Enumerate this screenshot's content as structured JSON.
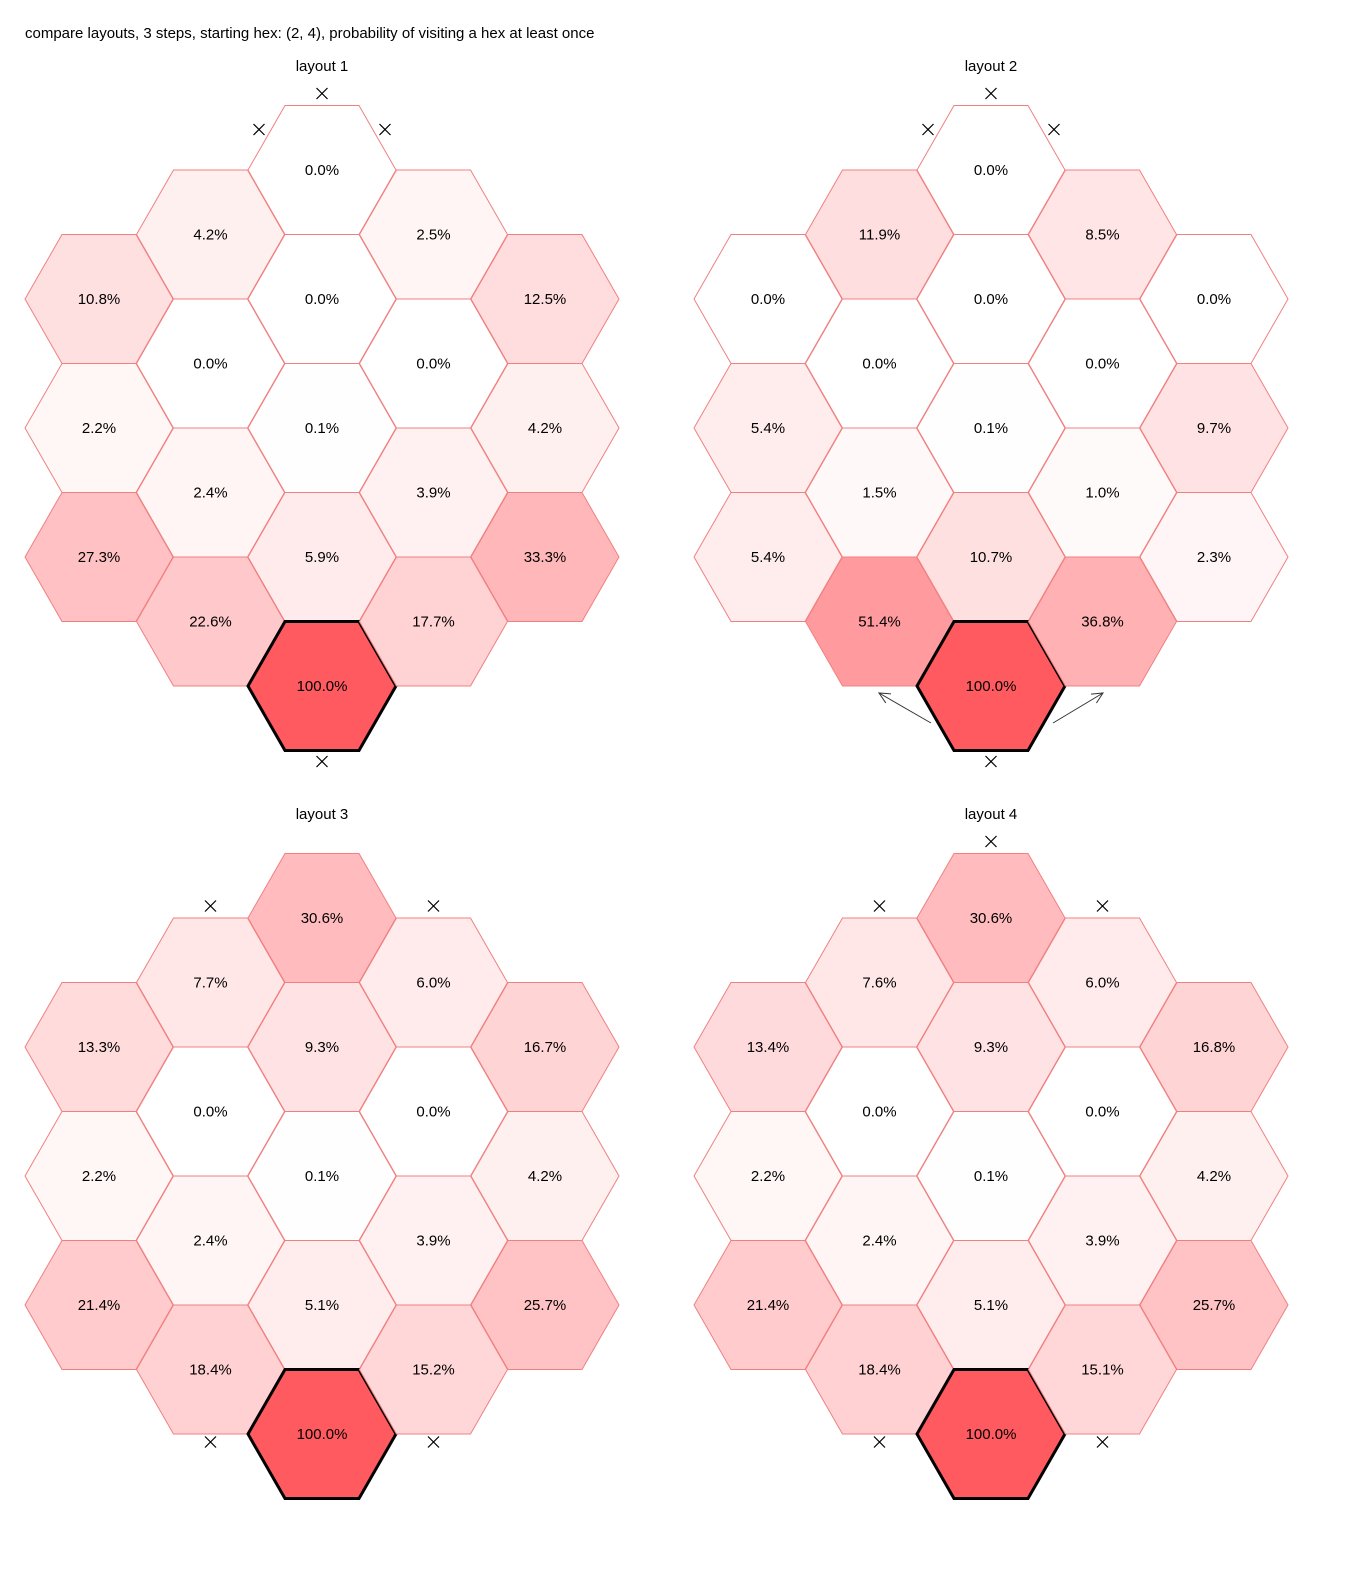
{
  "caption": "compare layouts, 3 steps, starting hex: (2, 4), probability of visiting a hex at least once",
  "colors": {
    "edge": "#f08080",
    "start_edge": "#000000",
    "fill_max": "#ff5a5f",
    "text": "#000000",
    "marker": "#000000"
  },
  "panels": [
    {
      "title": "layout 1",
      "start": "(2, 4)",
      "columns": [
        [
          "10.8%",
          "2.2%",
          "27.3%"
        ],
        [
          "4.2%",
          "0.0%",
          "2.4%",
          "22.6%"
        ],
        [
          "0.0%",
          "0.0%",
          "0.1%",
          "5.9%",
          "100.0%"
        ],
        [
          "2.5%",
          "0.0%",
          "3.9%",
          "17.7%"
        ],
        [
          "12.5%",
          "4.2%",
          "33.3%"
        ]
      ],
      "blocked_markers": [
        "top",
        "top-left",
        "top-right",
        "bottom"
      ],
      "arrows": []
    },
    {
      "title": "layout 2",
      "start": "(2, 4)",
      "columns": [
        [
          "0.0%",
          "5.4%",
          "5.4%"
        ],
        [
          "11.9%",
          "0.0%",
          "1.5%",
          "51.4%"
        ],
        [
          "0.0%",
          "0.0%",
          "0.1%",
          "10.7%",
          "100.0%"
        ],
        [
          "8.5%",
          "0.0%",
          "1.0%",
          "36.8%"
        ],
        [
          "0.0%",
          "9.7%",
          "2.3%"
        ]
      ],
      "blocked_markers": [
        "top",
        "top-left",
        "top-right",
        "bottom"
      ],
      "arrows": [
        "start-to-lower-left",
        "start-to-lower-right"
      ]
    },
    {
      "title": "layout 3",
      "start": "(2, 4)",
      "columns": [
        [
          "13.3%",
          "2.2%",
          "21.4%"
        ],
        [
          "7.7%",
          "0.0%",
          "2.4%",
          "18.4%"
        ],
        [
          "30.6%",
          "9.3%",
          "0.1%",
          "5.1%",
          "100.0%"
        ],
        [
          "6.0%",
          "0.0%",
          "3.9%",
          "15.2%"
        ],
        [
          "16.7%",
          "4.2%",
          "25.7%"
        ]
      ],
      "blocked_markers": [
        "top-left",
        "top-right",
        "bottom-left",
        "bottom-right"
      ],
      "arrows": []
    },
    {
      "title": "layout 4",
      "start": "(2, 4)",
      "columns": [
        [
          "13.4%",
          "2.2%",
          "21.4%"
        ],
        [
          "7.6%",
          "0.0%",
          "2.4%",
          "18.4%"
        ],
        [
          "30.6%",
          "9.3%",
          "0.1%",
          "5.1%",
          "100.0%"
        ],
        [
          "6.0%",
          "0.0%",
          "3.9%",
          "15.1%"
        ],
        [
          "16.8%",
          "4.2%",
          "25.7%"
        ]
      ],
      "blocked_markers": [
        "top",
        "top-left",
        "top-right",
        "bottom-left",
        "bottom-right"
      ],
      "arrows": []
    }
  ]
}
